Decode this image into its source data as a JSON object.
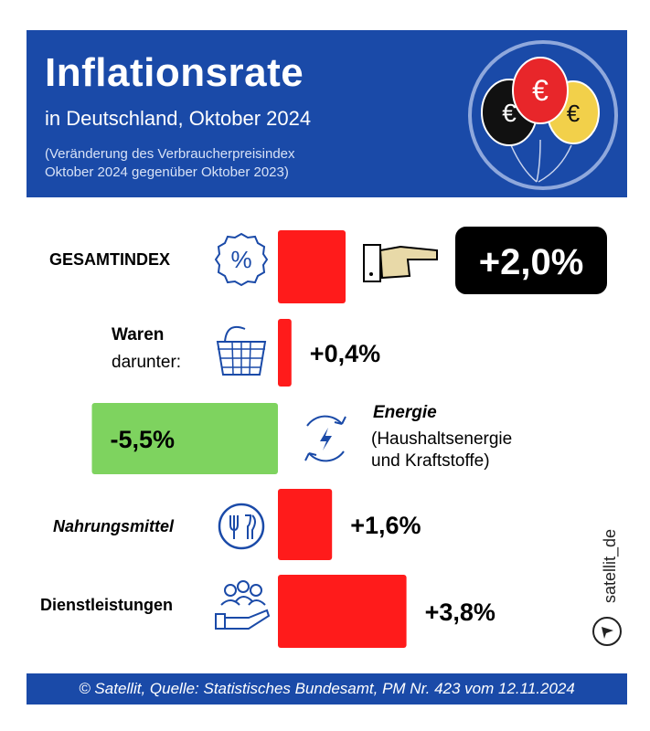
{
  "header": {
    "title": "Inflationsrate",
    "subtitle": "in Deutschland, Oktober 2024",
    "note_line1": "(Veränderung des Verbraucherpreisindex",
    "note_line2": "Oktober 2024 gegenüber Oktober 2023)",
    "balloon_symbol": "€",
    "balloon_colors": [
      "#111111",
      "#e8262a",
      "#f2d04a"
    ]
  },
  "chart_data": {
    "type": "bar",
    "orientation": "horizontal",
    "unit": "%",
    "categories": [
      "GESAMTINDEX",
      "Waren",
      "Energie",
      "Nahrungsmittel",
      "Dienstleistungen"
    ],
    "category_sublabels": [
      "",
      "darunter:",
      "(Haushaltsenergie und Kraftstoffe)",
      "",
      ""
    ],
    "values": [
      2.0,
      0.4,
      -5.5,
      1.6,
      3.8
    ],
    "value_labels": [
      "+2,0%",
      "+0,4%",
      "-5,5%",
      "+1,6%",
      "+3,8%"
    ],
    "colors": {
      "positive": "#ff1b1b",
      "negative": "#7ed35f",
      "highlight_box": "#000000"
    }
  },
  "icons": [
    "percent-icon",
    "pointing-hand-icon",
    "basket-icon",
    "energy-icon",
    "cutlery-icon",
    "service-icon"
  ],
  "footer": {
    "text": "© Satellit, Quelle: Statistisches Bundesamt, PM Nr. 423 vom 12.11.2024"
  },
  "brand": {
    "text": "satellit_de"
  },
  "colors": {
    "header_bg": "#1a4aa8",
    "footer_bg": "#1a4aa8"
  }
}
